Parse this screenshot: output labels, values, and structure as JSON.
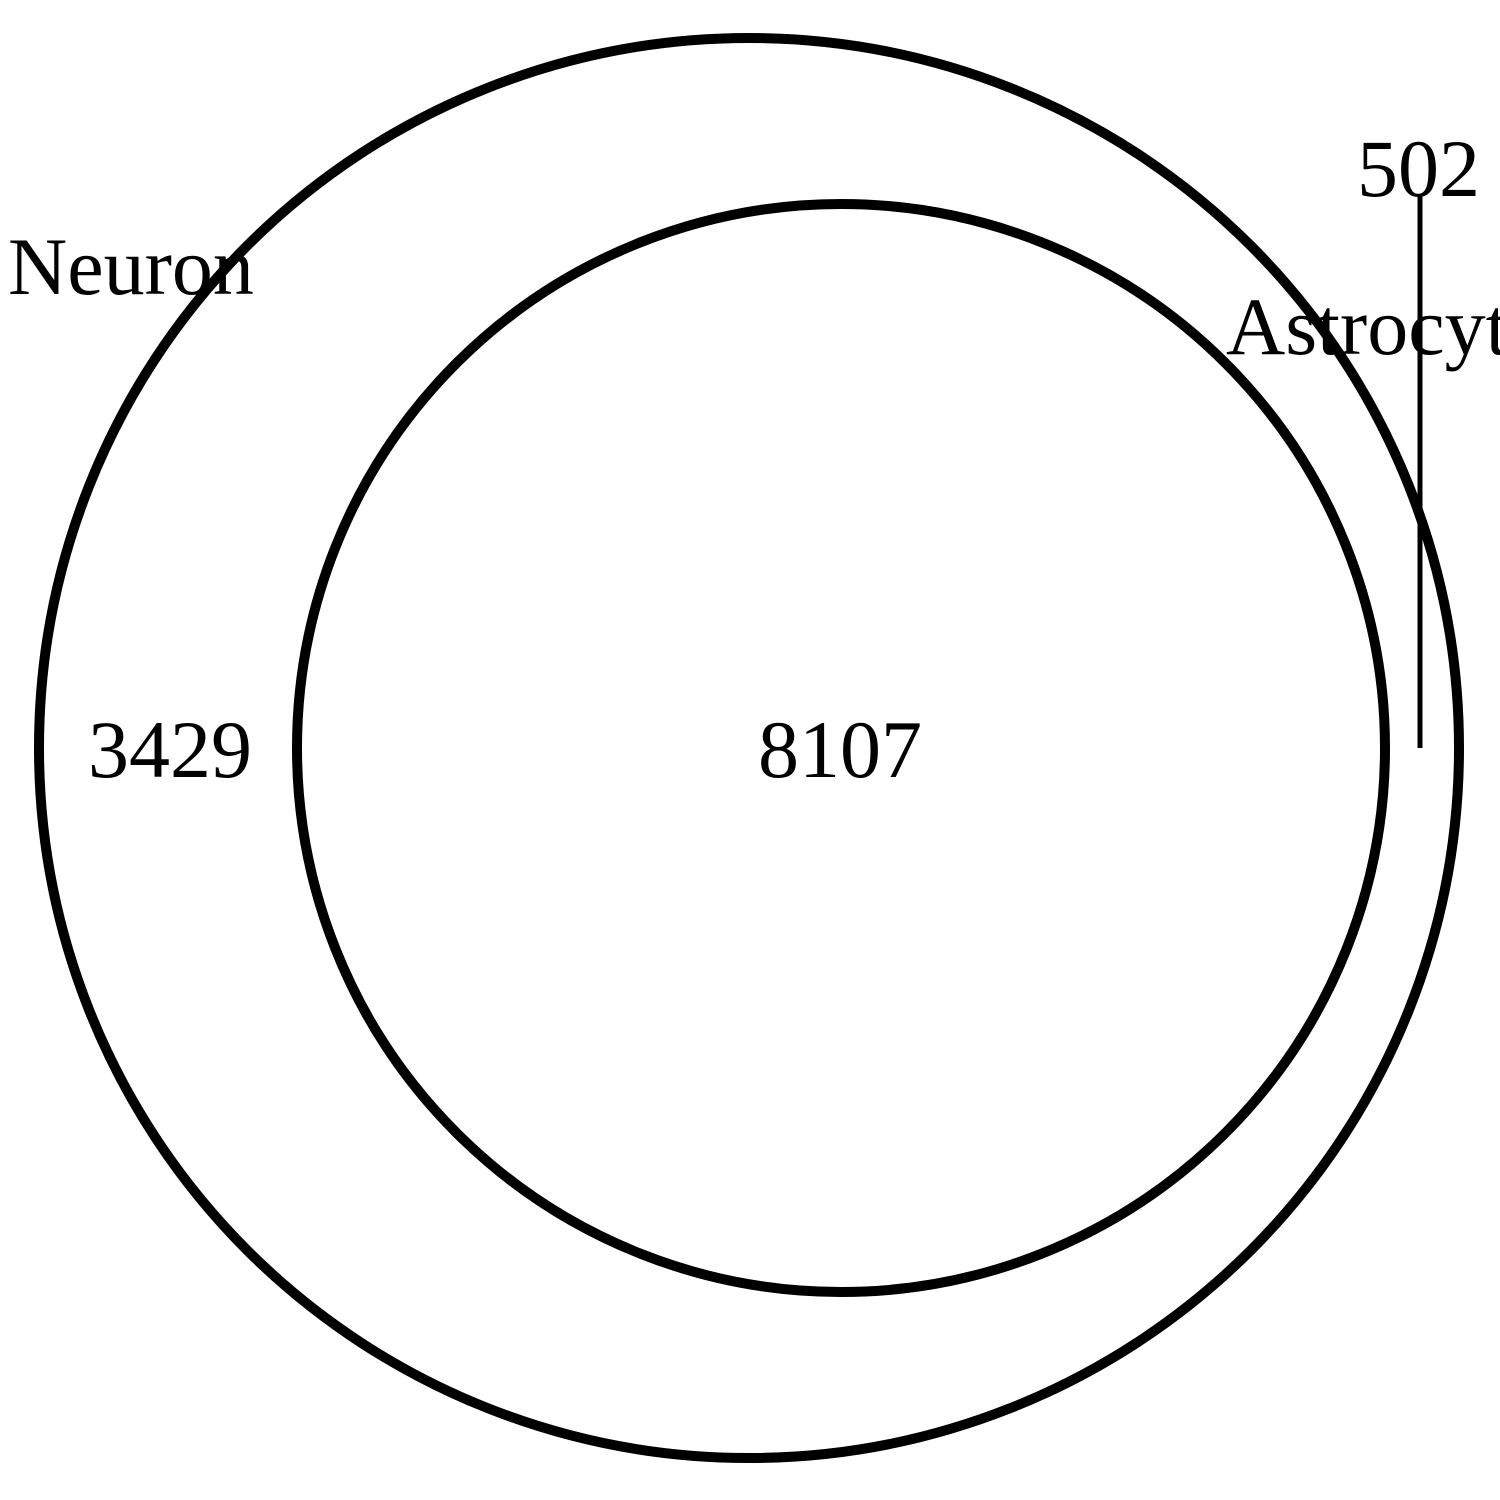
{
  "venn": {
    "sets": [
      {
        "name": "Neuron"
      },
      {
        "name": "Astrocyte"
      }
    ],
    "regions": {
      "neuron_only": "3429",
      "intersection": "8107",
      "astrocyte_only": "502"
    },
    "colors": {
      "stroke": "#000000",
      "background": "#ffffff",
      "text": "#000000"
    }
  }
}
